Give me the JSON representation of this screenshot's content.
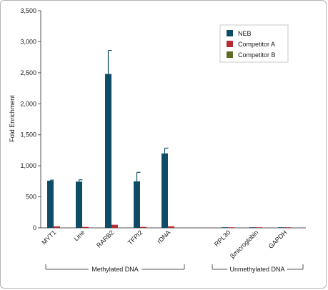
{
  "chart_data": {
    "type": "bar",
    "title": "",
    "xlabel": "",
    "ylabel": "Fold Enrichment",
    "ylim": [
      0,
      3500
    ],
    "yticks": [
      0,
      500,
      1000,
      1500,
      2000,
      2500,
      3000,
      3500
    ],
    "ytick_labels": [
      "0",
      "500",
      "1,000",
      "1,500",
      "2,000",
      "2,500",
      "3,000",
      "3,500"
    ],
    "grid": false,
    "legend_position": "top-right",
    "categories": [
      "MYT1",
      "Line",
      "RARB2",
      "TFPI2",
      "rDNA",
      "RPL30",
      "βmicroglobin",
      "GAPDH"
    ],
    "series": [
      {
        "name": "NEB",
        "color": "#0f4d66",
        "values": [
          760,
          745,
          2480,
          750,
          1200,
          5,
          5,
          5
        ],
        "errors": [
          10,
          30,
          380,
          145,
          85,
          0,
          0,
          0
        ]
      },
      {
        "name": "Competitor A",
        "color": "#b52e36",
        "values": [
          25,
          15,
          50,
          15,
          25,
          5,
          5,
          5
        ],
        "errors": [
          0,
          0,
          0,
          0,
          0,
          0,
          0,
          0
        ]
      },
      {
        "name": "Competitor B",
        "color": "#5d6b25",
        "values": [
          0,
          0,
          0,
          0,
          0,
          0,
          0,
          0
        ],
        "errors": [
          0,
          0,
          0,
          0,
          0,
          0,
          0,
          0
        ]
      }
    ],
    "groups": [
      {
        "label": "Methylated DNA",
        "categories": [
          "MYT1",
          "Line",
          "RARB2",
          "TFPI2",
          "rDNA"
        ]
      },
      {
        "label": "Unmethylated DNA",
        "categories": [
          "RPL30",
          "βmicroglobin",
          "GAPDH"
        ]
      }
    ]
  }
}
